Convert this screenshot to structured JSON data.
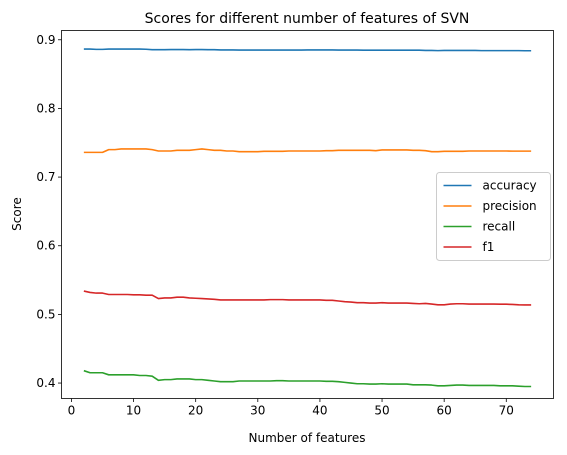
{
  "chart_data": {
    "type": "line",
    "title": "Scores for different number of features of SVN",
    "xlabel": "Number of features",
    "ylabel": "Score",
    "xlim": [
      -1.6,
      77.6
    ],
    "ylim": [
      0.3775,
      0.9135
    ],
    "xticks": [
      0,
      10,
      20,
      30,
      40,
      50,
      60,
      70
    ],
    "yticks": [
      0.4,
      0.5,
      0.6,
      0.7,
      0.8,
      0.9
    ],
    "ytick_labels": [
      "0.4",
      "0.5",
      "0.6",
      "0.7",
      "0.8",
      "0.9"
    ],
    "grid": false,
    "legend_position": "center-right",
    "x": [
      2,
      3,
      4,
      5,
      6,
      7,
      8,
      9,
      10,
      11,
      12,
      13,
      14,
      15,
      16,
      17,
      18,
      19,
      20,
      21,
      22,
      23,
      24,
      25,
      26,
      27,
      28,
      29,
      30,
      31,
      32,
      33,
      34,
      35,
      36,
      37,
      38,
      39,
      40,
      41,
      42,
      43,
      44,
      45,
      46,
      47,
      48,
      49,
      50,
      51,
      52,
      53,
      54,
      55,
      56,
      57,
      58,
      59,
      60,
      61,
      62,
      63,
      64,
      65,
      66,
      67,
      68,
      69,
      70,
      71,
      72,
      73,
      74
    ],
    "series": [
      {
        "name": "accuracy",
        "color": "#1f77b4",
        "values": [
          0.8865,
          0.8865,
          0.886,
          0.886,
          0.8865,
          0.8865,
          0.8865,
          0.8865,
          0.8865,
          0.8865,
          0.8862,
          0.8855,
          0.8855,
          0.8855,
          0.8858,
          0.8858,
          0.8858,
          0.8855,
          0.8858,
          0.8858,
          0.8855,
          0.8855,
          0.8852,
          0.8852,
          0.8852,
          0.885,
          0.885,
          0.885,
          0.885,
          0.885,
          0.885,
          0.885,
          0.885,
          0.885,
          0.885,
          0.885,
          0.8852,
          0.8852,
          0.8852,
          0.8852,
          0.8852,
          0.885,
          0.885,
          0.885,
          0.885,
          0.8848,
          0.8848,
          0.8848,
          0.8848,
          0.8848,
          0.8848,
          0.8848,
          0.8848,
          0.8848,
          0.8848,
          0.8845,
          0.8845,
          0.8842,
          0.8845,
          0.8845,
          0.8845,
          0.8845,
          0.8845,
          0.8845,
          0.8842,
          0.8842,
          0.8842,
          0.8842,
          0.8842,
          0.8842,
          0.8842,
          0.884,
          0.884
        ]
      },
      {
        "name": "precision",
        "color": "#ff7f0e",
        "values": [
          0.736,
          0.736,
          0.736,
          0.736,
          0.74,
          0.74,
          0.741,
          0.741,
          0.741,
          0.741,
          0.741,
          0.74,
          0.738,
          0.738,
          0.738,
          0.739,
          0.739,
          0.739,
          0.74,
          0.741,
          0.74,
          0.739,
          0.739,
          0.738,
          0.738,
          0.737,
          0.737,
          0.737,
          0.737,
          0.7375,
          0.7375,
          0.7375,
          0.7375,
          0.738,
          0.738,
          0.738,
          0.738,
          0.738,
          0.738,
          0.7385,
          0.7385,
          0.739,
          0.739,
          0.739,
          0.739,
          0.739,
          0.739,
          0.7385,
          0.7395,
          0.7395,
          0.7395,
          0.7395,
          0.7395,
          0.739,
          0.739,
          0.7385,
          0.737,
          0.737,
          0.7375,
          0.7375,
          0.7375,
          0.7375,
          0.738,
          0.738,
          0.738,
          0.738,
          0.738,
          0.738,
          0.738,
          0.7378,
          0.7378,
          0.7378,
          0.7378
        ]
      },
      {
        "name": "recall",
        "color": "#2ca02c",
        "values": [
          0.418,
          0.415,
          0.415,
          0.415,
          0.412,
          0.412,
          0.412,
          0.412,
          0.412,
          0.411,
          0.411,
          0.41,
          0.404,
          0.405,
          0.405,
          0.406,
          0.406,
          0.406,
          0.405,
          0.405,
          0.404,
          0.403,
          0.402,
          0.402,
          0.402,
          0.403,
          0.403,
          0.403,
          0.403,
          0.403,
          0.403,
          0.4035,
          0.4035,
          0.403,
          0.403,
          0.403,
          0.403,
          0.403,
          0.403,
          0.4025,
          0.4025,
          0.402,
          0.401,
          0.4,
          0.399,
          0.399,
          0.3985,
          0.3985,
          0.399,
          0.3985,
          0.3985,
          0.3985,
          0.3985,
          0.3975,
          0.3975,
          0.3975,
          0.397,
          0.396,
          0.396,
          0.3965,
          0.397,
          0.397,
          0.3965,
          0.3965,
          0.3965,
          0.3965,
          0.3965,
          0.396,
          0.396,
          0.396,
          0.3955,
          0.395,
          0.395
        ]
      },
      {
        "name": "f1",
        "color": "#d62728",
        "values": [
          0.534,
          0.532,
          0.531,
          0.531,
          0.529,
          0.529,
          0.529,
          0.529,
          0.5285,
          0.5285,
          0.528,
          0.528,
          0.523,
          0.524,
          0.524,
          0.525,
          0.525,
          0.524,
          0.5235,
          0.523,
          0.5225,
          0.522,
          0.521,
          0.521,
          0.521,
          0.521,
          0.521,
          0.521,
          0.521,
          0.521,
          0.5215,
          0.5215,
          0.5215,
          0.521,
          0.521,
          0.521,
          0.521,
          0.521,
          0.521,
          0.5205,
          0.5205,
          0.5195,
          0.5185,
          0.518,
          0.517,
          0.517,
          0.5165,
          0.5165,
          0.517,
          0.5165,
          0.5165,
          0.5165,
          0.5165,
          0.516,
          0.5155,
          0.516,
          0.515,
          0.514,
          0.514,
          0.515,
          0.5155,
          0.5155,
          0.515,
          0.515,
          0.515,
          0.515,
          0.515,
          0.5148,
          0.5148,
          0.5145,
          0.514,
          0.5138,
          0.5138
        ]
      }
    ]
  }
}
